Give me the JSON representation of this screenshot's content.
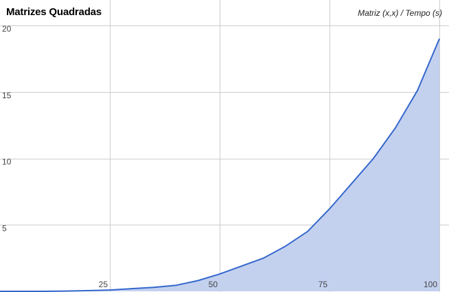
{
  "chart_data": {
    "type": "area",
    "title": "Matrizes Quadradas",
    "axes_caption": "Matriz (x,x) / Tempo (s)",
    "xlabel": "Matriz (x,x)",
    "ylabel": "Tempo (s)",
    "x_ticks": [
      "25",
      "50",
      "75",
      "100"
    ],
    "y_ticks": [
      "5",
      "10",
      "15",
      "20"
    ],
    "xlim": [
      0,
      100
    ],
    "ylim": [
      0,
      20
    ],
    "grid": true,
    "legend": "none",
    "colors": {
      "line": "#3366cc",
      "fill": "#c3d1ef",
      "grid": "#cccccc"
    },
    "series": [
      {
        "x": [
          0,
          5,
          10,
          15,
          20,
          25,
          30,
          35,
          40,
          45,
          50,
          55,
          60,
          65,
          70,
          75,
          80,
          85,
          90,
          95,
          100
        ],
        "values": [
          0.0,
          0.0,
          0.0,
          0.02,
          0.05,
          0.1,
          0.2,
          0.3,
          0.45,
          0.8,
          1.3,
          1.9,
          2.5,
          3.4,
          4.5,
          6.2,
          8.1,
          10.0,
          12.3,
          15.1,
          19.0
        ]
      }
    ]
  }
}
